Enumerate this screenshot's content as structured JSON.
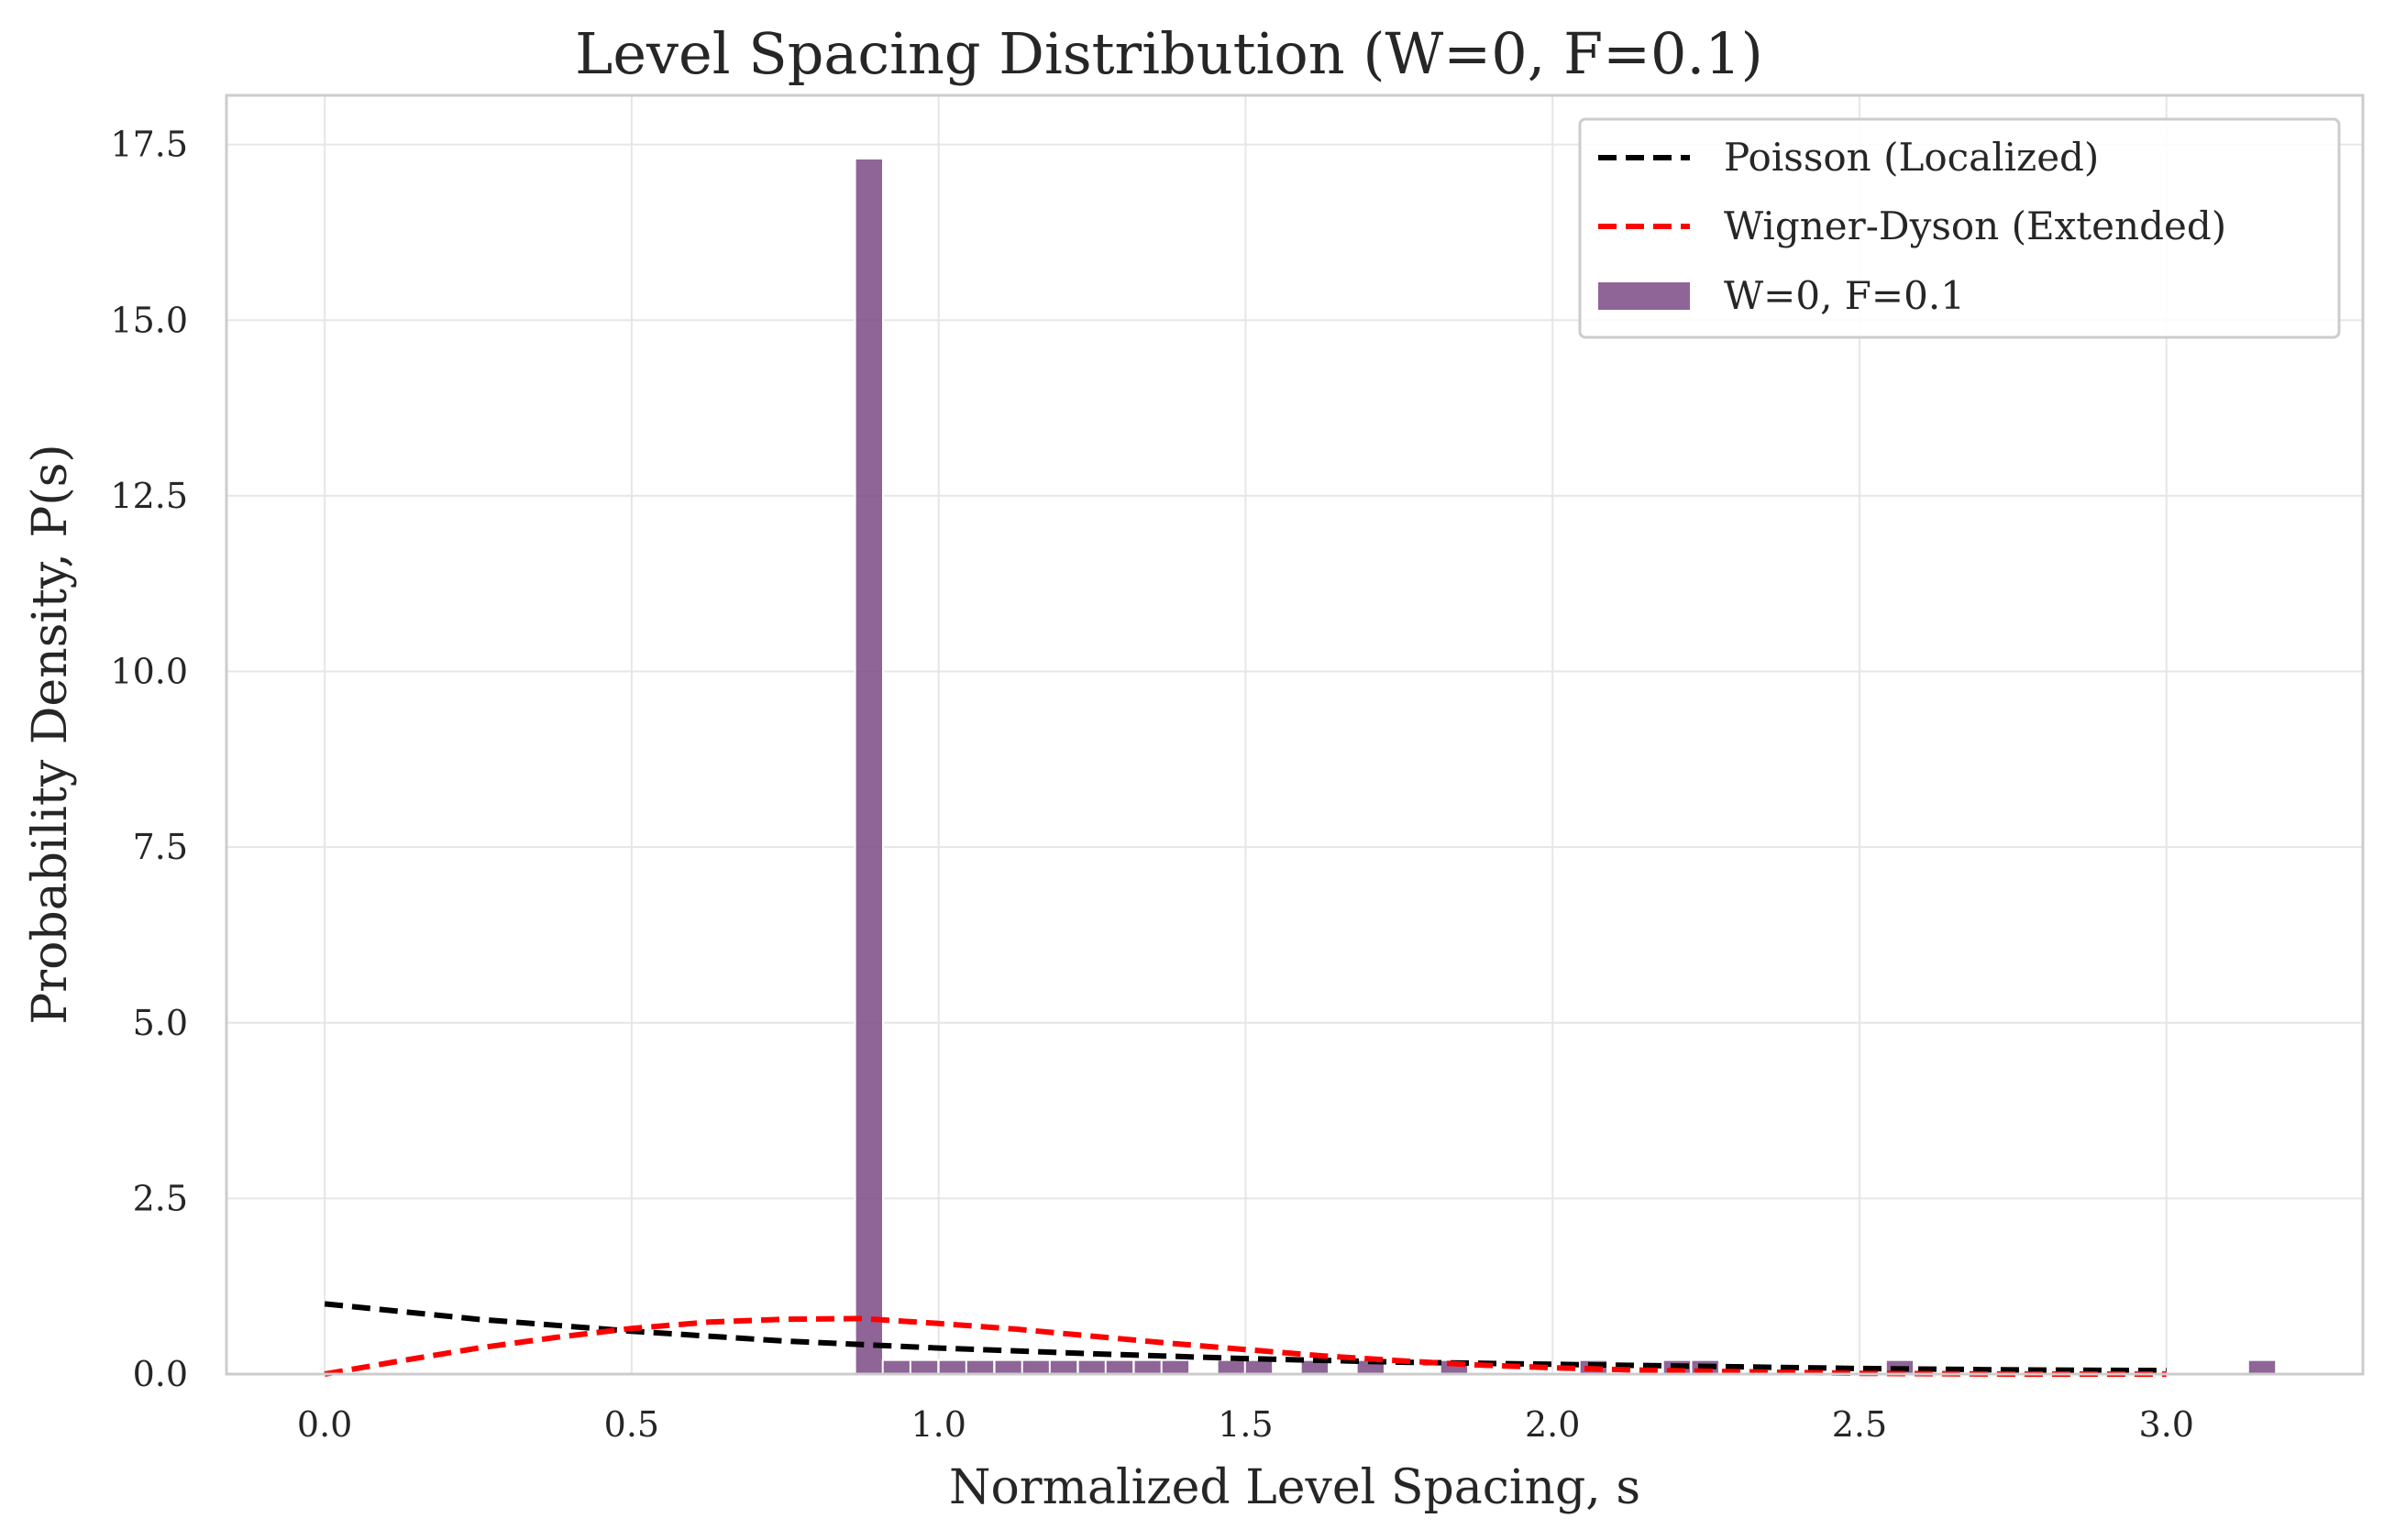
{
  "chart_data": {
    "type": "bar",
    "title": "Level Spacing Distribution (W=0, F=0.1)",
    "xlabel": "Normalized Level Spacing, s",
    "ylabel": "Probability Density, P(s)",
    "xlim": [
      -0.16,
      3.32
    ],
    "ylim": [
      0,
      18.2
    ],
    "xticks": [
      0.0,
      0.5,
      1.0,
      1.5,
      2.0,
      2.5,
      3.0
    ],
    "xtick_labels": [
      "0.0",
      "0.5",
      "1.0",
      "1.5",
      "2.0",
      "2.5",
      "3.0"
    ],
    "yticks": [
      0.0,
      2.5,
      5.0,
      7.5,
      10.0,
      12.5,
      15.0,
      17.5
    ],
    "ytick_labels": [
      "0.0",
      "2.5",
      "5.0",
      "7.5",
      "10.0",
      "12.5",
      "15.0",
      "17.5"
    ],
    "grid": true,
    "legend_position": "top-right",
    "bar_width": 0.0454,
    "histogram": {
      "name": "W=0, F=0.1",
      "color": "#7b4a86",
      "bin_width": 0.0454,
      "bin_starts": [
        0.864,
        0.909,
        0.954,
        1.0,
        1.045,
        1.091,
        1.136,
        1.181,
        1.227,
        1.272,
        1.318,
        1.363,
        1.454,
        1.499,
        1.59,
        1.681,
        1.817,
        2.044,
        2.18,
        2.226,
        2.543,
        3.133
      ],
      "values": [
        17.3,
        0.2,
        0.2,
        0.2,
        0.2,
        0.2,
        0.2,
        0.2,
        0.2,
        0.2,
        0.2,
        0.2,
        0.2,
        0.2,
        0.2,
        0.2,
        0.2,
        0.2,
        0.2,
        0.2,
        0.2,
        0.2
      ]
    },
    "series": [
      {
        "name": "Poisson (Localized)",
        "color": "#000000",
        "style": "dashed",
        "x": [
          0.0,
          0.25,
          0.5,
          0.75,
          1.0,
          1.25,
          1.5,
          1.75,
          2.0,
          2.25,
          2.5,
          2.75,
          3.0
        ],
        "y": [
          1.0,
          0.78,
          0.61,
          0.47,
          0.37,
          0.29,
          0.22,
          0.17,
          0.14,
          0.11,
          0.08,
          0.06,
          0.05
        ]
      },
      {
        "name": "Wigner-Dyson (Extended)",
        "color": "#ff0000",
        "style": "dashed",
        "x": [
          0.0,
          0.125,
          0.25,
          0.375,
          0.5,
          0.625,
          0.75,
          0.875,
          1.0,
          1.125,
          1.25,
          1.375,
          1.5,
          1.625,
          1.75,
          1.875,
          2.0,
          2.125,
          2.25,
          2.5,
          2.75,
          3.0
        ],
        "y": [
          0.0,
          0.19,
          0.37,
          0.52,
          0.65,
          0.74,
          0.78,
          0.79,
          0.72,
          0.64,
          0.54,
          0.44,
          0.35,
          0.26,
          0.19,
          0.13,
          0.09,
          0.06,
          0.04,
          0.01,
          0.0,
          0.0
        ]
      }
    ],
    "legend": [
      "Poisson (Localized)",
      "Wigner-Dyson (Extended)",
      "W=0, F=0.1"
    ]
  }
}
